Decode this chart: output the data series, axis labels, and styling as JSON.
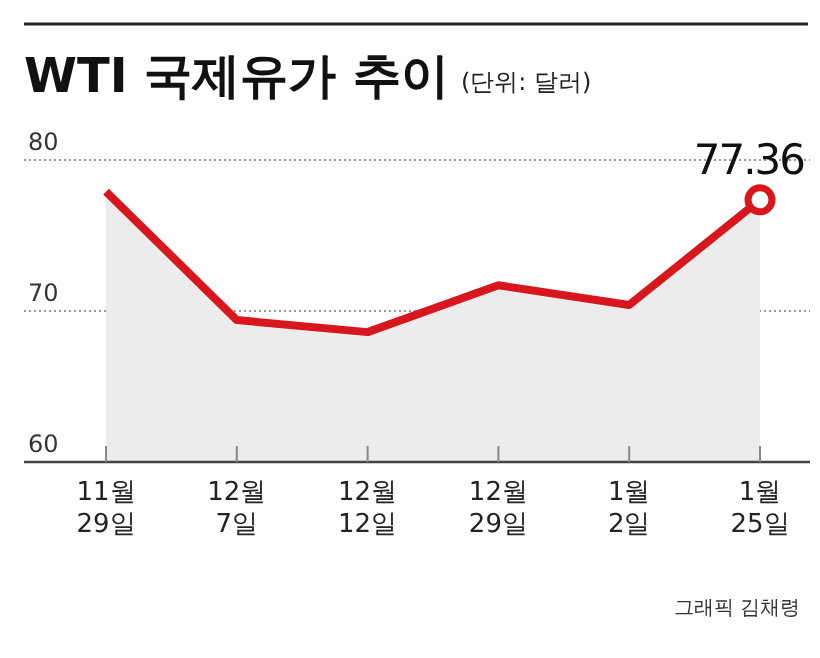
{
  "chart_data": {
    "type": "area",
    "title": "WTI 국제유가 추이",
    "subtitle": "(단위: 달러)",
    "categories": [
      "11월\n29일",
      "12월\n7일",
      "12월\n12일",
      "12월\n29일",
      "1월\n2일",
      "1월\n25일"
    ],
    "series": [
      {
        "color": "#d7161e",
        "values": [
          77.9,
          69.4,
          68.6,
          71.7,
          70.4,
          77.36
        ],
        "value_labels": [
          null,
          null,
          null,
          null,
          null,
          "77.36"
        ]
      }
    ],
    "ylim": [
      60,
      80
    ],
    "yticks": [
      60,
      70,
      80
    ],
    "grid": "y",
    "annotations": [
      "그래픽 김채령"
    ]
  }
}
